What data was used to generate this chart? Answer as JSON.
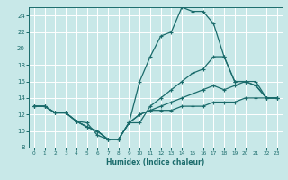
{
  "title": "",
  "xlabel": "Humidex (Indice chaleur)",
  "xlim": [
    -0.5,
    23.5
  ],
  "ylim": [
    8,
    25
  ],
  "yticks": [
    8,
    10,
    12,
    14,
    16,
    18,
    20,
    22,
    24
  ],
  "xticks": [
    0,
    1,
    2,
    3,
    4,
    5,
    6,
    7,
    8,
    9,
    10,
    11,
    12,
    13,
    14,
    15,
    16,
    17,
    18,
    19,
    20,
    21,
    22,
    23
  ],
  "bg_color": "#c8e8e8",
  "grid_color": "#ffffff",
  "line_color": "#1a6b6b",
  "lines": [
    {
      "x": [
        0,
        1,
        2,
        3,
        4,
        5,
        6,
        7,
        8,
        9,
        10,
        11,
        12,
        13,
        14,
        15,
        16,
        17,
        18,
        19,
        20,
        21,
        22,
        23
      ],
      "y": [
        13,
        13,
        12.2,
        12.2,
        11.2,
        11,
        9.5,
        9,
        9,
        11,
        16,
        19,
        21.5,
        22,
        25,
        24.5,
        24.5,
        23,
        19,
        16,
        16,
        15.5,
        14,
        14
      ]
    },
    {
      "x": [
        0,
        1,
        2,
        3,
        4,
        5,
        6,
        7,
        8,
        9,
        10,
        11,
        12,
        13,
        14,
        15,
        16,
        17,
        18,
        19,
        20,
        21,
        22,
        23
      ],
      "y": [
        13,
        13,
        12.2,
        12.2,
        11.2,
        10.5,
        10,
        9,
        9,
        11,
        11,
        13,
        14,
        15,
        16,
        17,
        17.5,
        19,
        19,
        16,
        16,
        16,
        14,
        14
      ]
    },
    {
      "x": [
        0,
        1,
        2,
        3,
        4,
        5,
        6,
        7,
        8,
        9,
        10,
        11,
        12,
        13,
        14,
        15,
        16,
        17,
        18,
        19,
        20,
        21,
        22,
        23
      ],
      "y": [
        13,
        13,
        12.2,
        12.2,
        11.2,
        10.5,
        10,
        9,
        9,
        11,
        12,
        12.5,
        13,
        13.5,
        14,
        14.5,
        15,
        15.5,
        15,
        15.5,
        16,
        15.5,
        14,
        14
      ]
    },
    {
      "x": [
        0,
        1,
        2,
        3,
        4,
        5,
        6,
        7,
        8,
        9,
        10,
        11,
        12,
        13,
        14,
        15,
        16,
        17,
        18,
        19,
        20,
        21,
        22,
        23
      ],
      "y": [
        13,
        13,
        12.2,
        12.2,
        11.2,
        10.5,
        10,
        9,
        9,
        11,
        12,
        12.5,
        12.5,
        12.5,
        13,
        13,
        13,
        13.5,
        13.5,
        13.5,
        14,
        14,
        14,
        14
      ]
    }
  ]
}
